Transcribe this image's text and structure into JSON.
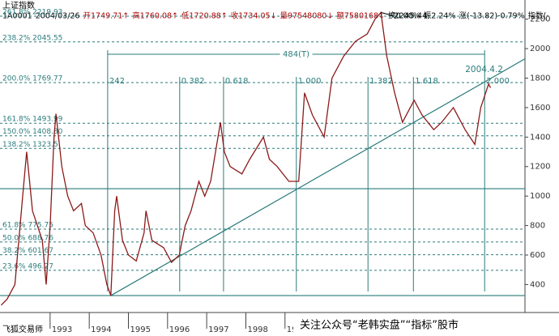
{
  "header": {
    "title": "上证指数",
    "quote": [
      "1A0001",
      "2004/03/26",
      "开1749.71↑",
      "高1760.08↑",
      "低1720.88↑",
      "收1734.05↓",
      "量97548080↓",
      "额7580168↓",
      "换0.00%",
      "振2.24%",
      "涨(-13.82)-0.79%",
      "指数(-"
    ]
  },
  "footer": {
    "software": "飞狐交易师",
    "watermark": "关注公众号“老韩实盘”“指标”股市"
  },
  "chart_data": {
    "type": "line",
    "x": [
      1991.75,
      1991.9,
      1992.1,
      1992.3,
      1992.4,
      1992.55,
      1992.8,
      1992.9,
      1993.0,
      1993.1,
      1993.15,
      1993.3,
      1993.45,
      1993.6,
      1993.8,
      1993.9,
      1994.1,
      1994.3,
      1994.45,
      1994.55,
      1994.65,
      1994.7,
      1994.85,
      1995.0,
      1995.2,
      1995.4,
      1995.45,
      1995.6,
      1995.9,
      1996.1,
      1996.3,
      1996.45,
      1996.6,
      1996.8,
      1996.95,
      1997.1,
      1997.35,
      1997.45,
      1997.6,
      1997.9,
      1998.1,
      1998.45,
      1998.6,
      1998.8,
      1999.1,
      1999.35,
      1999.5,
      1999.7,
      2000.0,
      2000.2,
      2000.5,
      2000.8,
      2001.1,
      2001.3,
      2001.45,
      2001.6,
      2001.8,
      2002.0,
      2002.3,
      2002.5,
      2002.8,
      2003.0,
      2003.3,
      2003.6,
      2003.85,
      2004.0,
      2004.2,
      2004.25
    ],
    "series": [
      {
        "color": "#8b1a1a",
        "values": [
          260,
          300,
          400,
          1000,
          1300,
          900,
          700,
          400,
          800,
          1400,
          1558,
          1200,
          1000,
          900,
          950,
          800,
          750,
          600,
          400,
          325,
          900,
          1000,
          700,
          600,
          560,
          750,
          900,
          700,
          650,
          550,
          600,
          800,
          900,
          1100,
          1000,
          1100,
          1500,
          1300,
          1200,
          1150,
          1250,
          1400,
          1250,
          1200,
          1100,
          1100,
          1700,
          1550,
          1400,
          1800,
          1950,
          2050,
          2100,
          2200,
          2245.44,
          1950,
          1700,
          1500,
          1650,
          1550,
          1450,
          1500,
          1600,
          1450,
          1350,
          1600,
          1760,
          1734.05
        ]
      }
    ],
    "xlim": [
      1991.72,
      2005.13
    ],
    "ylim": [
      210,
      2330
    ],
    "xticks": [
      1993,
      1994,
      1995,
      1996,
      1997,
      1998,
      1999
    ],
    "yticks": [
      400,
      600,
      800,
      1000,
      1200,
      1400,
      1600,
      1800,
      2000,
      2200
    ],
    "fib_levels": [
      {
        "value": 2219.93,
        "label": "261.8% 2219.93"
      },
      {
        "value": 2045.55,
        "label": "238.2% 2045.55"
      },
      {
        "value": 1769.77,
        "label": "200.0% 1769.77"
      },
      {
        "value": 1493.99,
        "label": "161.8% 1493.99"
      },
      {
        "value": 1408.8,
        "label": "150.0% 1408.80"
      },
      {
        "value": 1323.5,
        "label": "138.2% 1323.5"
      },
      {
        "value": 775.75,
        "label": "61.8% 775.75"
      },
      {
        "value": 688.76,
        "label": "50.0% 688.76"
      },
      {
        "value": 601.67,
        "label": "38.2% 601.67"
      },
      {
        "value": 496.27,
        "label": "23.6% 496.27"
      }
    ],
    "time_lines": [
      {
        "x": 1994.47,
        "label": "242"
      },
      {
        "x": 1996.31,
        "label": "0.382"
      },
      {
        "x": 1997.43,
        "label": "0.618"
      },
      {
        "x": 1999.29,
        "label": "1.000"
      },
      {
        "x": 2001.12,
        "label": "1.382"
      },
      {
        "x": 2002.28,
        "label": "1.618"
      },
      {
        "x": 2004.1,
        "label": "2.000"
      }
    ],
    "span_label": "484(T)",
    "support_lines": [
      1050,
      325
    ],
    "trend_line": {
      "x": [
        1994.55,
        2005.13
      ],
      "y": [
        325,
        1931
      ]
    },
    "peak": {
      "x": 2001.45,
      "value": 2245.44
    },
    "date_note": {
      "x": 2004.1,
      "label": "2004.4.2"
    },
    "line_color": "#2a7b7b"
  }
}
